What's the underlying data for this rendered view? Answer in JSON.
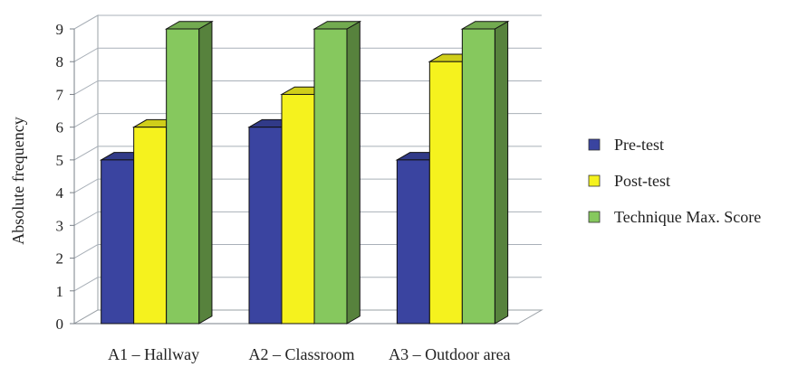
{
  "chart_data": {
    "type": "bar",
    "style": "3d-clustered-column",
    "categories": [
      "A1 – Hallway",
      "A2 – Classroom",
      "A3 – Outdoor area"
    ],
    "series": [
      {
        "name": "Pre-test",
        "values": [
          5,
          6,
          5
        ],
        "color": "#3a44a0"
      },
      {
        "name": "Post-test",
        "values": [
          6,
          7,
          8
        ],
        "color": "#f5f21e"
      },
      {
        "name": "Technique Max. Score",
        "values": [
          9,
          9,
          9
        ],
        "color": "#86c85e"
      }
    ],
    "ylabel": "Absolute frequency",
    "ylim": [
      0,
      9
    ],
    "yticks": [
      0,
      1,
      2,
      3,
      4,
      5,
      6,
      7,
      8,
      9
    ],
    "grid": true,
    "legend_position": "right"
  }
}
